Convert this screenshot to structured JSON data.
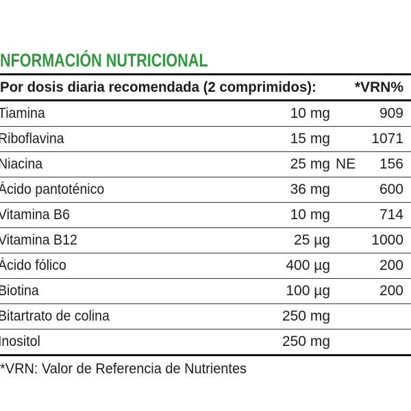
{
  "title": "INFORMACIÓN NUTRICIONAL",
  "header": {
    "label": "Por dosis diaria recomendada (2 comprimidos):",
    "vrn": "*VRN%"
  },
  "rows": [
    {
      "name": "Tiamina",
      "amount": "10 mg",
      "vrn": "909"
    },
    {
      "name": "Riboflavina",
      "amount": "15 mg",
      "vrn": "1071"
    },
    {
      "name": "Niacina",
      "amount": "25 mg",
      "note": "NE",
      "vrn": "156"
    },
    {
      "name": "Ácido pantoténico",
      "amount": "36 mg",
      "vrn": "600"
    },
    {
      "name": "Vitamina B6",
      "amount": "10 mg",
      "vrn": "714"
    },
    {
      "name": "Vitamina B12",
      "amount": "25 µg",
      "vrn": "1000"
    },
    {
      "name": "Ácido fólico",
      "amount": "400 µg",
      "vrn": "200"
    },
    {
      "name": "Biotina",
      "amount": "100 µg",
      "vrn": "200"
    },
    {
      "name": "Bitartrato de colina",
      "amount": "250 mg"
    },
    {
      "name": "Inositol",
      "amount": "250 mg"
    }
  ],
  "footnote": "*VRN: Valor de Referencia de Nutrientes",
  "colors": {
    "title": "#2d9b3c",
    "text": "#1c1c1c",
    "rule": "#111111"
  }
}
